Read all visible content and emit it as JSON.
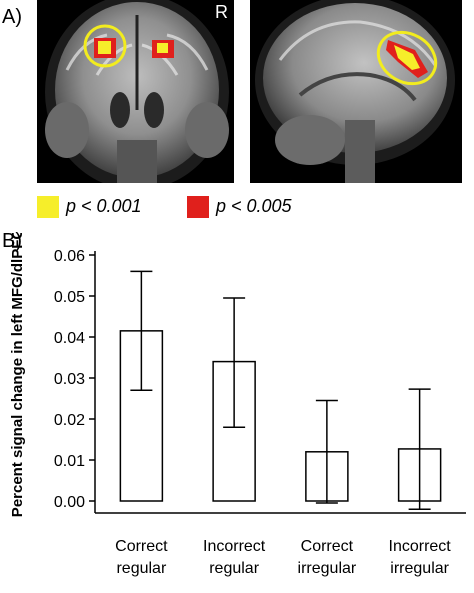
{
  "panel_a": {
    "label": "A)",
    "orientation_marker": "R",
    "colors": {
      "p001": "#f6ee2a",
      "p005": "#e0201c",
      "highlight_ring": "#f2ec1e"
    }
  },
  "legend": [
    {
      "text": "p < 0.001",
      "color": "#f6ee2a"
    },
    {
      "text": "p < 0.005",
      "color": "#e0201c"
    }
  ],
  "panel_b": {
    "label": "B)"
  },
  "chart_data": {
    "type": "bar",
    "ylabel": "Percent signal change in left MFG/dlPFC",
    "ylim": [
      0,
      0.06
    ],
    "yticks": [
      "0.00",
      "0.01",
      "0.02",
      "0.03",
      "0.04",
      "0.05",
      "0.06"
    ],
    "categories": [
      [
        "Correct",
        "regular"
      ],
      [
        "Incorrect",
        "regular"
      ],
      [
        "Correct",
        "irregular"
      ],
      [
        "Incorrect",
        "irregular"
      ]
    ],
    "values": [
      0.0415,
      0.034,
      0.012,
      0.0127
    ],
    "error_low": [
      0.027,
      0.018,
      -0.0005,
      -0.002
    ],
    "error_high": [
      0.056,
      0.0495,
      0.0245,
      0.0273
    ],
    "bar_fill": "#ffffff",
    "bar_stroke": "#000000"
  }
}
